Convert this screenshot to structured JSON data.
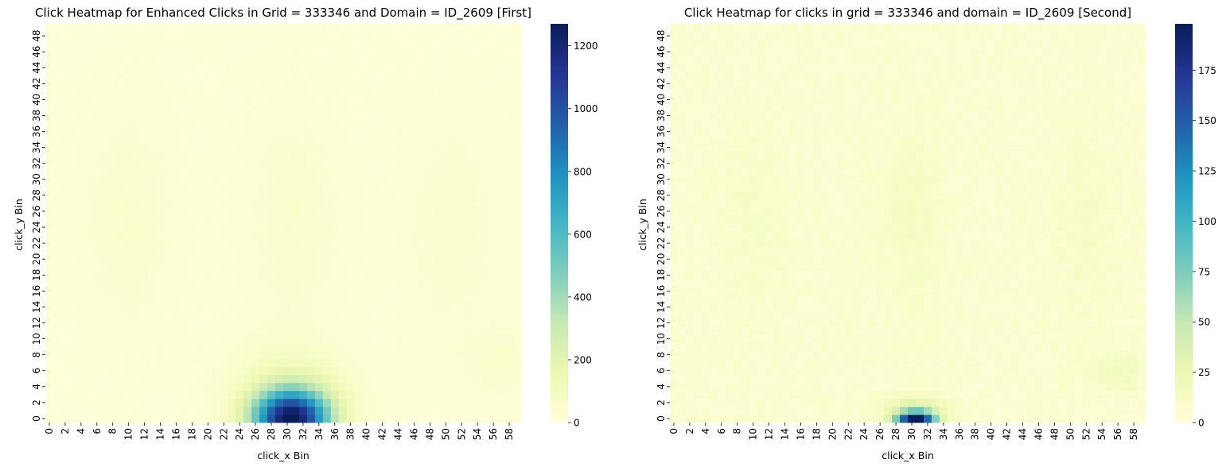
{
  "chart_data": [
    {
      "type": "heatmap",
      "title": "Click Heatmap for Enhanced Clicks in Grid = 333346 and Domain = ID_2609 [First]",
      "xlabel": "click_x Bin",
      "ylabel": "click_y Bin",
      "x_bins": 60,
      "y_bins": 50,
      "x_tick_labels": [
        "0",
        "2",
        "4",
        "6",
        "8",
        "10",
        "12",
        "14",
        "16",
        "18",
        "20",
        "22",
        "24",
        "26",
        "28",
        "30",
        "32",
        "34",
        "36",
        "38",
        "40",
        "42",
        "44",
        "46",
        "48",
        "50",
        "52",
        "54",
        "56",
        "58"
      ],
      "y_tick_labels": [
        "0",
        "2",
        "4",
        "6",
        "8",
        "10",
        "12",
        "14",
        "16",
        "18",
        "20",
        "22",
        "24",
        "26",
        "28",
        "30",
        "32",
        "34",
        "36",
        "38",
        "40",
        "42",
        "44",
        "46",
        "48"
      ],
      "colormap": "YlGnBu",
      "colorbar": {
        "min": 0,
        "max": 1270,
        "ticks": [
          "0",
          "200",
          "400",
          "600",
          "800",
          "1000",
          "1200"
        ]
      },
      "peak": {
        "x": 30,
        "y": 0,
        "value": 1270
      },
      "hotspots": [
        {
          "x": 30.5,
          "y": 0,
          "sx": 3.2,
          "sy": 2.4,
          "value": 1200
        },
        {
          "x": 30.5,
          "y": 3,
          "sx": 5,
          "sy": 4,
          "value": 150
        },
        {
          "x": 10,
          "y": 25,
          "sx": 4,
          "sy": 9,
          "value": 45
        },
        {
          "x": 31,
          "y": 25,
          "sx": 4,
          "sy": 9,
          "value": 42
        },
        {
          "x": 51,
          "y": 24,
          "sx": 4,
          "sy": 9,
          "value": 40
        },
        {
          "x": 57,
          "y": 7,
          "sx": 3,
          "sy": 3,
          "value": 45
        }
      ]
    },
    {
      "type": "heatmap",
      "title": "Click Heatmap for clicks in grid = 333346 and domain = ID_2609 [Second]",
      "xlabel": "click_x Bin",
      "ylabel": "click_y Bin",
      "x_bins": 60,
      "y_bins": 50,
      "x_tick_labels": [
        "0",
        "2",
        "4",
        "6",
        "8",
        "10",
        "12",
        "14",
        "16",
        "18",
        "20",
        "22",
        "24",
        "26",
        "28",
        "30",
        "32",
        "34",
        "36",
        "38",
        "40",
        "42",
        "44",
        "46",
        "48",
        "50",
        "52",
        "54",
        "56",
        "58"
      ],
      "y_tick_labels": [
        "0",
        "2",
        "4",
        "6",
        "8",
        "10",
        "12",
        "14",
        "16",
        "18",
        "20",
        "22",
        "24",
        "26",
        "28",
        "30",
        "32",
        "34",
        "36",
        "38",
        "40",
        "42",
        "44",
        "46",
        "48"
      ],
      "colormap": "YlGnBu",
      "colorbar": {
        "min": 0,
        "max": 198,
        "ticks": [
          "0",
          "25",
          "50",
          "75",
          "100",
          "125",
          "150",
          "175"
        ]
      },
      "peak": {
        "x": 30,
        "y": 0,
        "value": 198
      },
      "hotspots": [
        {
          "x": 30.5,
          "y": 0,
          "sx": 1.6,
          "sy": 0.6,
          "value": 185
        },
        {
          "x": 30.5,
          "y": 1,
          "sx": 2.5,
          "sy": 1.2,
          "value": 35
        },
        {
          "x": 30,
          "y": 25,
          "sx": 3,
          "sy": 8,
          "value": 8
        },
        {
          "x": 10,
          "y": 25,
          "sx": 3,
          "sy": 8,
          "value": 6
        },
        {
          "x": 52,
          "y": 24,
          "sx": 3,
          "sy": 8,
          "value": 6
        },
        {
          "x": 56,
          "y": 6,
          "sx": 3,
          "sy": 1.5,
          "value": 12
        }
      ]
    }
  ]
}
